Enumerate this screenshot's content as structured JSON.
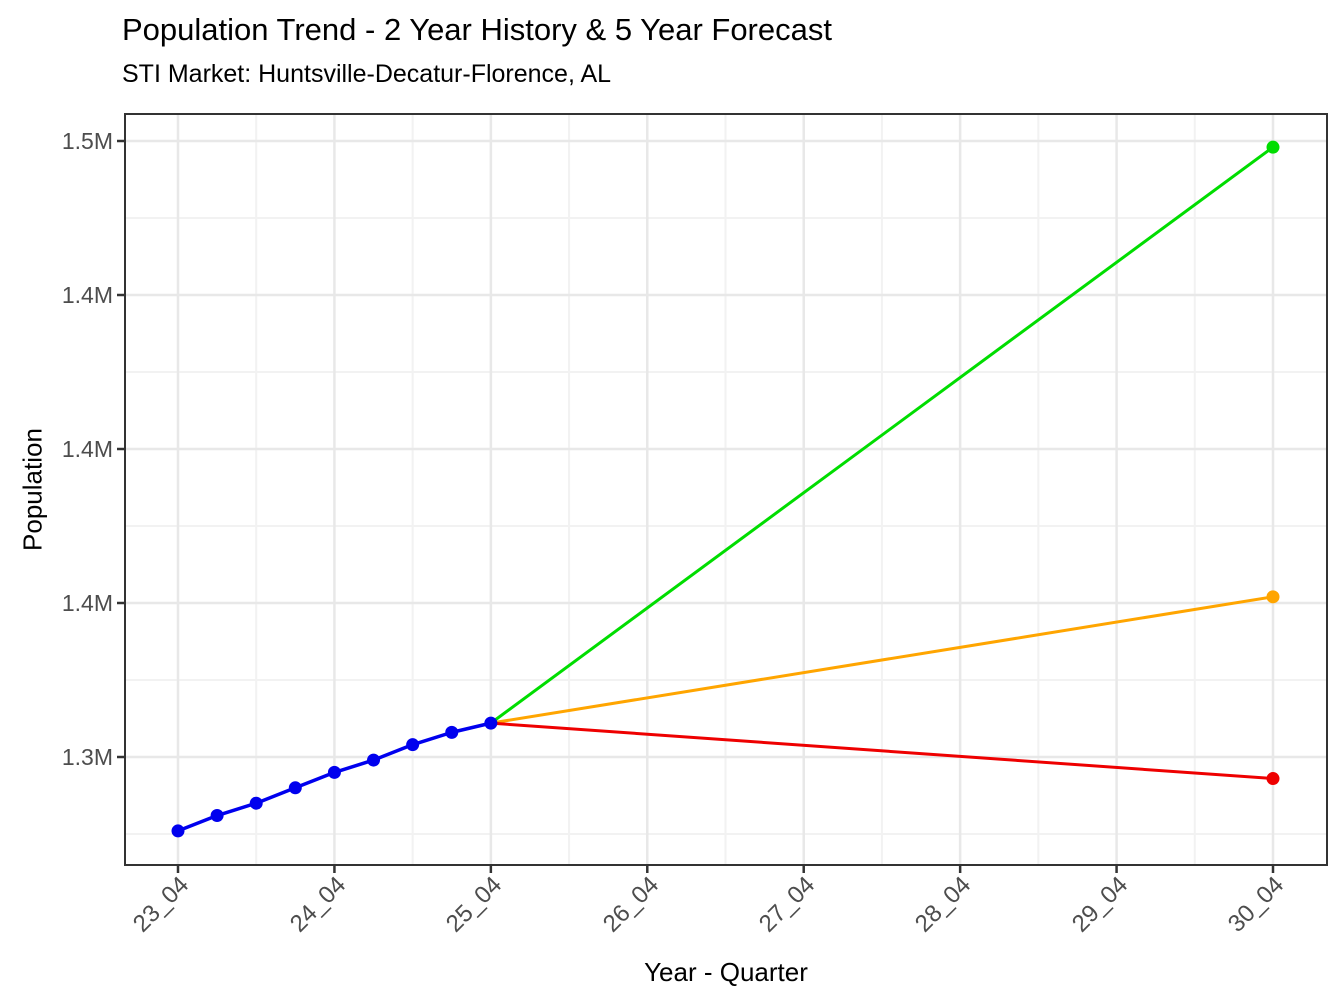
{
  "page": {
    "background": "#FFFFFF"
  },
  "chart_data": {
    "type": "line",
    "title": "Population Trend - 2 Year History & 5 Year Forecast",
    "subtitle": "STI Market: Huntsville-Decatur-Florence, AL",
    "xlabel": "Year - Quarter",
    "ylabel": "Population",
    "legend": "none",
    "grid": true,
    "panel_style": {
      "border_color": "#333333",
      "grid_major_color": "#E8E8E8",
      "grid_minor_color": "#F2F2F2",
      "tick_color": "#333333",
      "tick_label_color": "#4D4D4D"
    },
    "x_axis": {
      "kind": "quarterly-slots",
      "n_slots": 29,
      "first_slot": "23_04",
      "last_slot": "30_04",
      "ticks": [
        {
          "index": 0,
          "label": "23_04"
        },
        {
          "index": 4,
          "label": "24_04"
        },
        {
          "index": 8,
          "label": "25_04"
        },
        {
          "index": 12,
          "label": "26_04"
        },
        {
          "index": 16,
          "label": "27_04"
        },
        {
          "index": 20,
          "label": "28_04"
        },
        {
          "index": 24,
          "label": "29_04"
        },
        {
          "index": 28,
          "label": "30_04"
        }
      ],
      "minor_indices": [
        2,
        6,
        10,
        14,
        18,
        22,
        26
      ]
    },
    "y_axis": {
      "unit": "millions",
      "ticks": [
        {
          "value": 1.5,
          "label": "1.5M"
        },
        {
          "value": 1.45,
          "label": "1.4M"
        },
        {
          "value": 1.4,
          "label": "1.4M"
        },
        {
          "value": 1.35,
          "label": "1.4M"
        },
        {
          "value": 1.3,
          "label": "1.3M"
        }
      ],
      "minor_values": [
        1.475,
        1.425,
        1.375,
        1.325,
        1.275
      ],
      "range": [
        1.263,
        1.509
      ]
    },
    "series": [
      {
        "name": "forecast-high",
        "color": "#00DD00",
        "line_width": 3,
        "markers": "end",
        "points": [
          {
            "q": "25_04",
            "i": 8,
            "v": 1.311
          },
          {
            "q": "30_04",
            "i": 28,
            "v": 1.498
          }
        ]
      },
      {
        "name": "forecast-mid",
        "color": "#FFA500",
        "line_width": 3,
        "markers": "end",
        "points": [
          {
            "q": "25_04",
            "i": 8,
            "v": 1.311
          },
          {
            "q": "30_04",
            "i": 28,
            "v": 1.352
          }
        ]
      },
      {
        "name": "forecast-low",
        "color": "#EE0000",
        "line_width": 3,
        "markers": "end",
        "points": [
          {
            "q": "25_04",
            "i": 8,
            "v": 1.311
          },
          {
            "q": "30_04",
            "i": 28,
            "v": 1.293
          }
        ]
      },
      {
        "name": "history",
        "color": "#0000EE",
        "line_width": 3.5,
        "markers": "all",
        "points": [
          {
            "q": "23_04",
            "i": 0,
            "v": 1.276
          },
          {
            "q": "24_01",
            "i": 1,
            "v": 1.281
          },
          {
            "q": "24_02",
            "i": 2,
            "v": 1.285
          },
          {
            "q": "24_03",
            "i": 3,
            "v": 1.29
          },
          {
            "q": "24_04",
            "i": 4,
            "v": 1.295
          },
          {
            "q": "25_01",
            "i": 5,
            "v": 1.299
          },
          {
            "q": "25_02",
            "i": 6,
            "v": 1.304
          },
          {
            "q": "25_03",
            "i": 7,
            "v": 1.308
          },
          {
            "q": "25_04",
            "i": 8,
            "v": 1.311
          }
        ]
      }
    ]
  }
}
